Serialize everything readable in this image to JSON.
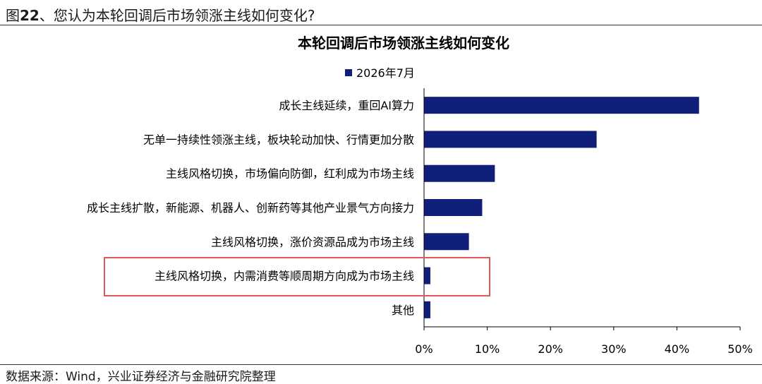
{
  "figure": {
    "label": "图",
    "number": "22",
    "caption": "、您认为本轮回调后市场领涨主线如何变化?"
  },
  "source_note": "数据来源：Wind，兴业证券经济与金融研究院整理",
  "colors": {
    "bar": "#0F1F7A",
    "highlight_box": "#E05A5A",
    "axis": "#000000"
  },
  "highlight": {
    "category_index": 5,
    "description_color": "highlight_box"
  },
  "chart_data": {
    "type": "bar",
    "orientation": "horizontal",
    "title": "本轮回调后市场领涨主线如何变化",
    "legend": {
      "position": "top",
      "entries": [
        "2026年7月"
      ]
    },
    "categories": [
      "成长主线延续，重回AI算力",
      "无单一持续性领涨主线，板块轮动加快、行情更加分散",
      "主线风格切换，市场偏向防御，红利成为市场主线",
      "成长主线扩散，新能源、机器人、创新药等其他产业景气方向接力",
      "主线风格切换，涨价资源品成为市场主线",
      "主线风格切换，内需消费等顺周期方向成为市场主线",
      "其他"
    ],
    "series": [
      {
        "name": "2026年7月",
        "values": [
          43.5,
          27.3,
          11.2,
          9.2,
          7.1,
          1.0,
          1.0
        ]
      }
    ],
    "x_axis": {
      "range": [
        0,
        50
      ],
      "ticks": [
        0,
        10,
        20,
        30,
        40,
        50
      ],
      "tick_format": "percent"
    },
    "grid": false
  }
}
